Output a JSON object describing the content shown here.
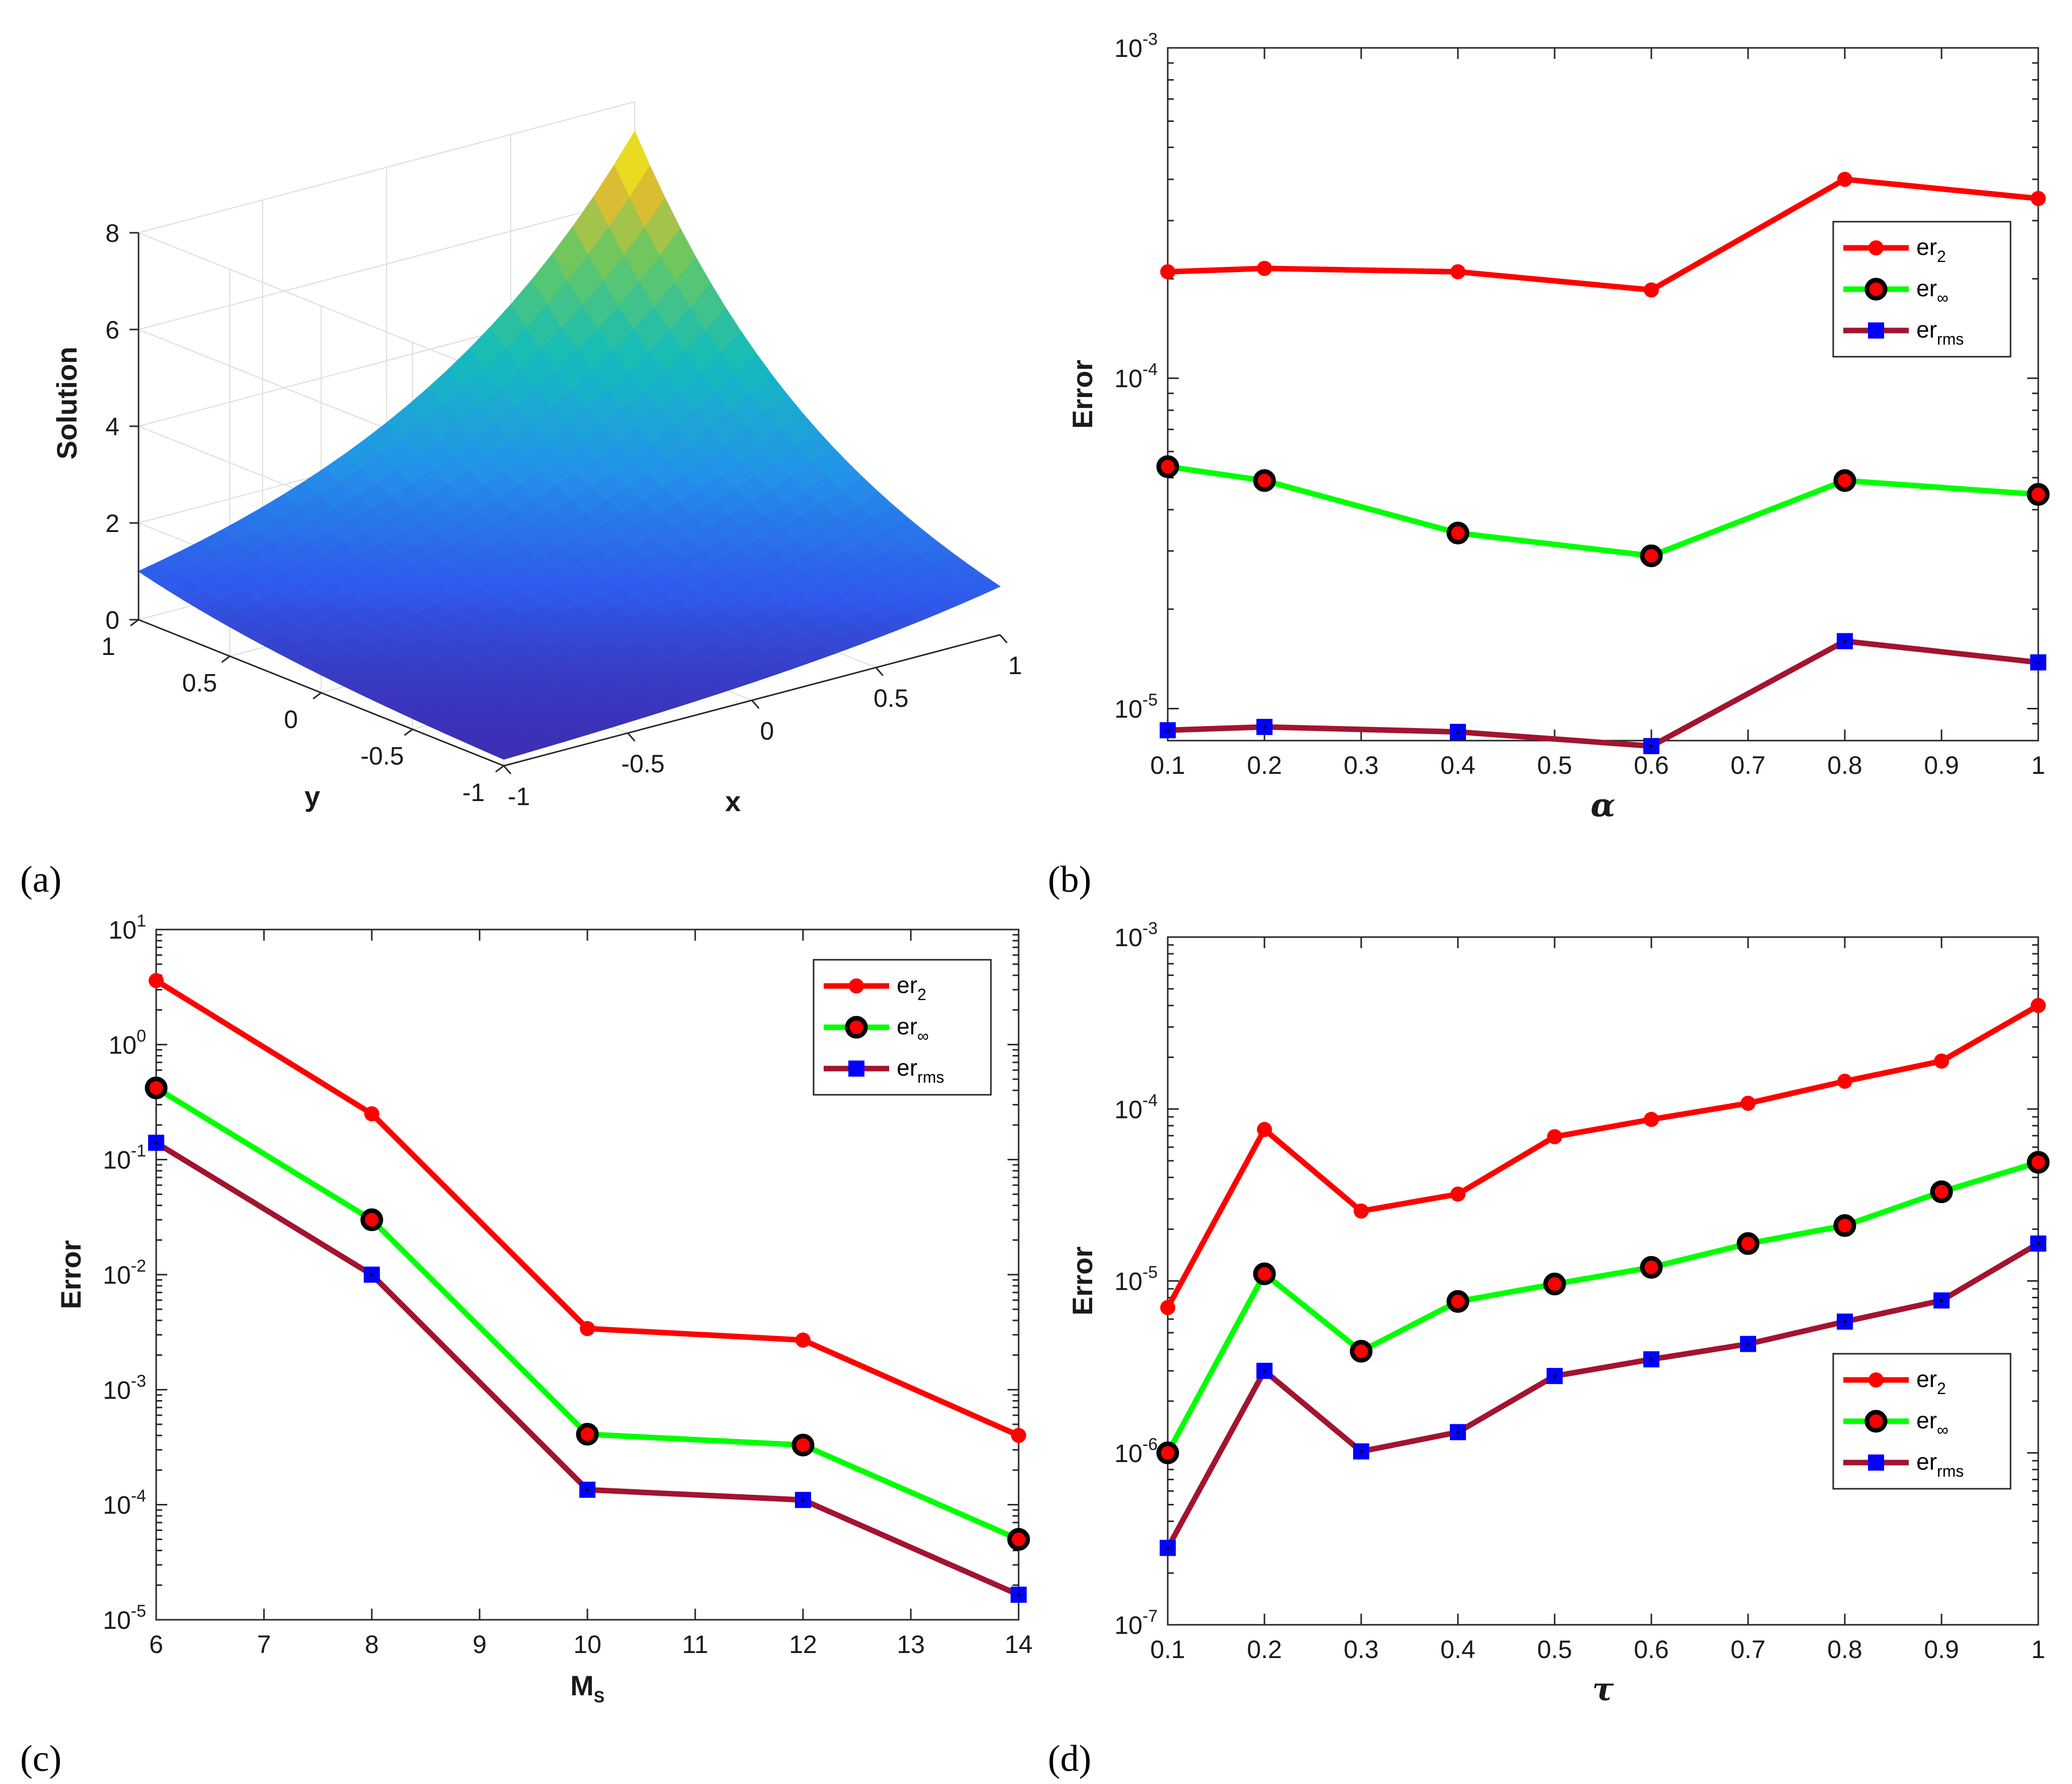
{
  "colors": {
    "er2": "#ff0000",
    "erinf_line": "#00ff00",
    "erinf_marker_edge": "#000000",
    "erinf_marker_face": "#ff0000",
    "errms_line": "#a2142f",
    "errms_marker": "#0000ff",
    "axis": "#262626",
    "surface_low": "#3e2a8c",
    "surface_mid": "#1fb7b8",
    "surface_high": "#f9fb0e"
  },
  "legend": [
    {
      "base": "er",
      "sub": "2"
    },
    {
      "base": "er",
      "sub": "∞"
    },
    {
      "base": "er",
      "sub": "rms"
    }
  ],
  "chart_data": [
    {
      "panel": "(a)",
      "type": "surface",
      "xlabel": "x",
      "ylabel": "y",
      "zlabel": "Solution",
      "x_ticks": [
        "-1",
        "-0.5",
        "0",
        "0.5",
        "1"
      ],
      "y_ticks": [
        "-1",
        "-0.5",
        "0",
        "0.5",
        "1"
      ],
      "z_ticks": [
        "0",
        "2",
        "4",
        "6",
        "8"
      ],
      "x_range": [
        -1,
        1
      ],
      "y_range": [
        -1,
        1
      ],
      "z_range": [
        0,
        8
      ],
      "corner_values": {
        "x-1_y-1": 0.14,
        "x1_y-1": 1.0,
        "x-1_y1": 1.0,
        "x1_y1": 7.39
      }
    },
    {
      "panel": "(b)",
      "type": "line",
      "yscale": "log",
      "xlabel": "α",
      "ylabel": "Error",
      "xlim": [
        0.1,
        1
      ],
      "ylim": [
        8e-06,
        0.001
      ],
      "x_ticks": [
        "0.1",
        "0.2",
        "0.3",
        "0.4",
        "0.5",
        "0.6",
        "0.7",
        "0.8",
        "0.9",
        "1"
      ],
      "y_ticks": [
        {
          "base": "10",
          "exp": "-5"
        },
        {
          "base": "10",
          "exp": "-4"
        },
        {
          "base": "10",
          "exp": "-3"
        }
      ],
      "legend_position": "upper-right",
      "x": [
        0.1,
        0.2,
        0.4,
        0.6,
        0.8,
        1.0
      ],
      "series": [
        {
          "name": "er_2",
          "values": [
            0.00021,
            0.000215,
            0.00021,
            0.000185,
            0.0004,
            0.00035
          ]
        },
        {
          "name": "er_inf",
          "values": [
            5.4e-05,
            4.9e-05,
            3.4e-05,
            2.9e-05,
            4.9e-05,
            4.45e-05
          ]
        },
        {
          "name": "er_rms",
          "values": [
            8.6e-06,
            8.8e-06,
            8.5e-06,
            7.7e-06,
            1.6e-05,
            1.38e-05
          ]
        }
      ]
    },
    {
      "panel": "(c)",
      "type": "line",
      "yscale": "log",
      "xlabel": "M",
      "xlabel_sub": "S",
      "ylabel": "Error",
      "xlim": [
        6,
        14
      ],
      "ylim": [
        1e-05,
        10
      ],
      "x_ticks": [
        "6",
        "7",
        "8",
        "9",
        "10",
        "11",
        "12",
        "13",
        "14"
      ],
      "y_ticks": [
        {
          "base": "10",
          "exp": "-5"
        },
        {
          "base": "10",
          "exp": "-4"
        },
        {
          "base": "10",
          "exp": "-3"
        },
        {
          "base": "10",
          "exp": "-2"
        },
        {
          "base": "10",
          "exp": "-1"
        },
        {
          "base": "10",
          "exp": "0"
        },
        {
          "base": "10",
          "exp": "1"
        }
      ],
      "legend_position": "upper-right",
      "x": [
        6,
        8,
        10,
        12,
        14
      ],
      "series": [
        {
          "name": "er_2",
          "values": [
            3.6,
            0.25,
            0.0034,
            0.0027,
            0.0004
          ]
        },
        {
          "name": "er_inf",
          "values": [
            0.42,
            0.03,
            0.00041,
            0.00033,
            5e-05
          ]
        },
        {
          "name": "er_rms",
          "values": [
            0.14,
            0.01,
            0.000135,
            0.00011,
            1.65e-05
          ]
        }
      ]
    },
    {
      "panel": "(d)",
      "type": "line",
      "yscale": "log",
      "xlabel": "τ",
      "ylabel": "Error",
      "xlim": [
        0.1,
        1
      ],
      "ylim": [
        1e-07,
        0.001
      ],
      "x_ticks": [
        "0.1",
        "0.2",
        "0.3",
        "0.4",
        "0.5",
        "0.6",
        "0.7",
        "0.8",
        "0.9",
        "1"
      ],
      "y_ticks": [
        {
          "base": "10",
          "exp": "-7"
        },
        {
          "base": "10",
          "exp": "-6"
        },
        {
          "base": "10",
          "exp": "-5"
        },
        {
          "base": "10",
          "exp": "-4"
        },
        {
          "base": "10",
          "exp": "-3"
        }
      ],
      "legend_position": "lower-right",
      "x": [
        0.1,
        0.2,
        0.3,
        0.4,
        0.5,
        0.6,
        0.7,
        0.8,
        0.9,
        1.0
      ],
      "series": [
        {
          "name": "er_2",
          "values": [
            7e-06,
            7.6e-05,
            2.55e-05,
            3.2e-05,
            6.9e-05,
            8.7e-05,
            0.000108,
            0.000145,
            0.00019,
            0.0004
          ]
        },
        {
          "name": "er_inf",
          "values": [
            1e-06,
            1.1e-05,
            3.9e-06,
            7.6e-06,
            9.6e-06,
            1.2e-05,
            1.65e-05,
            2.1e-05,
            3.3e-05,
            4.9e-05
          ]
        },
        {
          "name": "er_rms",
          "values": [
            2.8e-07,
            3e-06,
            1.02e-06,
            1.32e-06,
            2.8e-06,
            3.5e-06,
            4.3e-06,
            5.8e-06,
            7.7e-06,
            1.65e-05
          ]
        }
      ]
    }
  ]
}
